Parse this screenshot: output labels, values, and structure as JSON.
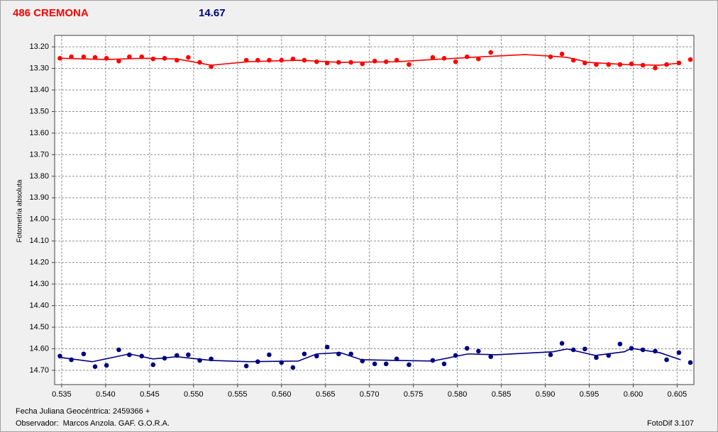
{
  "chart_data": {
    "type": "scatter",
    "title": "486 CREMONA",
    "subtitle": "14.67",
    "y_label": "Fotometría absoluta",
    "x_label": "Fecha Juliana Geocéntrica: 2459366 +",
    "observer": "Observador:  Marcos Anzola. GAF. G.O.R.A.",
    "software": "FotoDif 3.107",
    "grid": true,
    "y_inverted": true,
    "xlim": [
      0.5342,
      0.6069
    ],
    "ylim": [
      13.147,
      14.766
    ],
    "xticks": [
      0.535,
      {
        "value": 0.54,
        "label": "0.540"
      },
      0.545,
      {
        "value": 0.55,
        "label": "0.550"
      },
      0.555,
      {
        "value": 0.56,
        "label": "0.560"
      },
      0.565,
      {
        "value": 0.57,
        "label": "0.570"
      },
      0.575,
      {
        "value": 0.58,
        "label": "0.580"
      },
      0.585,
      {
        "value": 0.59,
        "label": "0.590"
      },
      0.595,
      {
        "value": 0.6,
        "label": "0.600"
      },
      0.605
    ],
    "yticks": [
      {
        "value": 13.2,
        "label": "13.20"
      },
      {
        "value": 13.3,
        "label": "13.30"
      },
      {
        "value": 13.4,
        "label": "13.40"
      },
      {
        "value": 13.5,
        "label": "13.50"
      },
      {
        "value": 13.6,
        "label": "13.60"
      },
      {
        "value": 13.7,
        "label": "13.70"
      },
      {
        "value": 13.8,
        "label": "13.80"
      },
      {
        "value": 13.9,
        "label": "13.90"
      },
      {
        "value": 14.0,
        "label": "14.00"
      },
      {
        "value": 14.1,
        "label": "14.10"
      },
      {
        "value": 14.2,
        "label": "14.20"
      },
      {
        "value": 14.3,
        "label": "14.30"
      },
      {
        "value": 14.4,
        "label": "14.40"
      },
      {
        "value": 14.5,
        "label": "14.50"
      },
      {
        "value": 14.6,
        "label": "14.60"
      },
      {
        "value": 14.7,
        "label": "14.70"
      }
    ],
    "x": [
      0.5348,
      0.5361,
      0.5375,
      0.5388,
      0.5401,
      0.5415,
      0.5427,
      0.5441,
      0.5454,
      0.5467,
      0.5481,
      0.5494,
      0.5507,
      0.552,
      0.556,
      0.5573,
      0.5586,
      0.56,
      0.5613,
      0.5626,
      0.564,
      0.5652,
      0.5665,
      0.5679,
      0.5692,
      0.5706,
      0.5719,
      0.5731,
      0.5745,
      0.5772,
      0.5785,
      0.5798,
      0.5811,
      0.5824,
      0.5838,
      0.5906,
      0.5919,
      0.5932,
      0.5945,
      0.5958,
      0.5972,
      0.5985,
      0.5998,
      0.6011,
      0.6025,
      0.6038,
      0.6052,
      0.6065
    ],
    "series": [
      {
        "color": "#ff0000",
        "values": [
          13.253,
          13.246,
          13.246,
          13.249,
          13.253,
          13.266,
          13.246,
          13.246,
          13.256,
          13.253,
          13.262,
          13.249,
          13.272,
          13.292,
          13.262,
          13.262,
          13.262,
          13.262,
          13.256,
          13.262,
          13.269,
          13.275,
          13.272,
          13.272,
          13.279,
          13.266,
          13.269,
          13.262,
          13.282,
          13.249,
          13.253,
          13.269,
          13.246,
          13.256,
          13.226,
          13.246,
          13.233,
          13.262,
          13.275,
          13.282,
          13.282,
          13.282,
          13.279,
          13.285,
          13.298,
          13.282,
          13.275,
          13.259
        ],
        "fit": {
          "x": [
            0.535,
            0.5401,
            0.5441,
            0.5481,
            0.552,
            0.5562,
            0.5619,
            0.5667,
            0.5731,
            0.5772,
            0.5828,
            0.5877,
            0.5906,
            0.5925,
            0.5949,
            0.599,
            0.603,
            0.6054
          ],
          "values": [
            13.253,
            13.259,
            13.253,
            13.256,
            13.285,
            13.269,
            13.262,
            13.272,
            13.269,
            13.259,
            13.246,
            13.236,
            13.243,
            13.249,
            13.272,
            13.282,
            13.285,
            13.275
          ]
        }
      },
      {
        "color": "#000080",
        "values": [
          14.634,
          14.651,
          14.624,
          14.683,
          14.677,
          14.605,
          14.628,
          14.634,
          14.674,
          14.644,
          14.631,
          14.628,
          14.654,
          14.647,
          14.68,
          14.66,
          14.628,
          14.664,
          14.687,
          14.624,
          14.634,
          14.592,
          14.624,
          14.624,
          14.657,
          14.67,
          14.67,
          14.647,
          14.674,
          14.654,
          14.67,
          14.631,
          14.598,
          14.611,
          14.637,
          14.628,
          14.575,
          14.605,
          14.601,
          14.641,
          14.631,
          14.578,
          14.598,
          14.605,
          14.611,
          14.651,
          14.618,
          14.664
        ],
        "fit": {
          "x": [
            0.535,
            0.5385,
            0.5427,
            0.5454,
            0.5481,
            0.552,
            0.5562,
            0.5619,
            0.564,
            0.5667,
            0.5691,
            0.5731,
            0.5772,
            0.5812,
            0.5844,
            0.5909,
            0.5925,
            0.5957,
            0.599,
            0.5998,
            0.603,
            0.6054
          ],
          "values": [
            14.641,
            14.66,
            14.624,
            14.647,
            14.637,
            14.654,
            14.66,
            14.657,
            14.624,
            14.618,
            14.651,
            14.654,
            14.657,
            14.624,
            14.628,
            14.614,
            14.601,
            14.631,
            14.614,
            14.598,
            14.618,
            14.651
          ]
        }
      }
    ]
  }
}
